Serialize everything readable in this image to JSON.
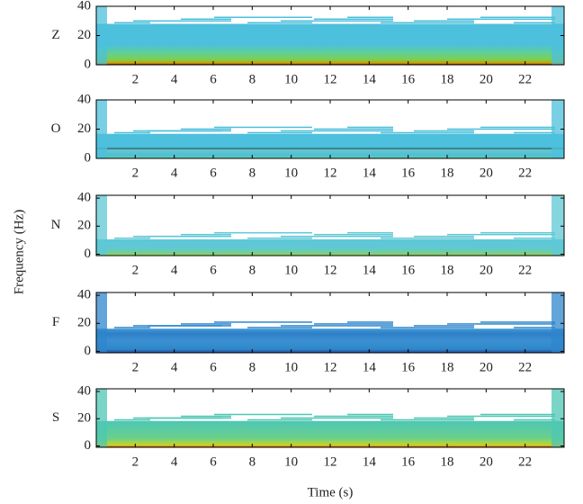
{
  "figure": {
    "ylabel": "Frequency (Hz)",
    "xlabel": "Time (s)"
  },
  "chart_data": [
    {
      "type": "spectrogram",
      "ylabel": "Z",
      "xlim": [
        0,
        24
      ],
      "ylim": [
        0,
        40
      ],
      "xticks": [
        2,
        4,
        6,
        8,
        10,
        12,
        14,
        16,
        18,
        20,
        22
      ],
      "yticks": [
        0,
        20,
        40
      ]
    },
    {
      "type": "spectrogram",
      "ylabel": "O",
      "xlim": [
        0,
        24
      ],
      "ylim": [
        0,
        40
      ],
      "xticks": [
        2,
        4,
        6,
        8,
        10,
        12,
        14,
        16,
        18,
        20,
        22
      ],
      "yticks": [
        0,
        20,
        40
      ]
    },
    {
      "type": "spectrogram",
      "ylabel": "N",
      "xlim": [
        0,
        24
      ],
      "ylim": [
        -1,
        42
      ],
      "xticks": [
        2,
        4,
        6,
        8,
        10,
        12,
        14,
        16,
        18,
        20,
        22
      ],
      "yticks": [
        0,
        20,
        40
      ]
    },
    {
      "type": "spectrogram",
      "ylabel": "F",
      "xlim": [
        0,
        24
      ],
      "ylim": [
        -1,
        42
      ],
      "xticks": [
        2,
        4,
        6,
        8,
        10,
        12,
        14,
        16,
        18,
        20,
        22
      ],
      "yticks": [
        0,
        20,
        40
      ]
    },
    {
      "type": "spectrogram",
      "ylabel": "S",
      "xlim": [
        0,
        24
      ],
      "ylim": [
        -1,
        42
      ],
      "xticks": [
        2,
        4,
        6,
        8,
        10,
        12,
        14,
        16,
        18,
        20,
        22
      ],
      "yticks": [
        0,
        20,
        40
      ]
    }
  ]
}
